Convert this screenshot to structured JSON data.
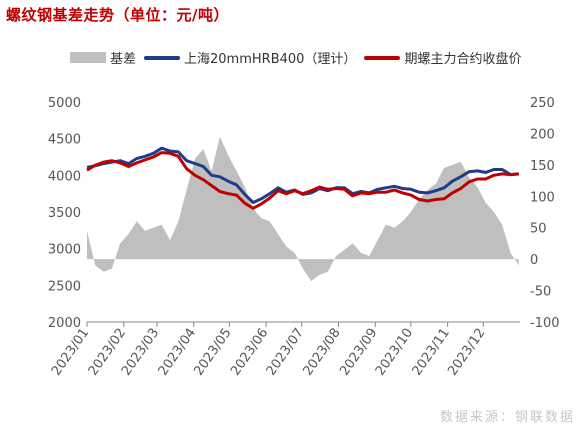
{
  "title": "螺纹钢基差走势（单位：元/吨）",
  "source": "数据来源：钢联数据",
  "colors": {
    "basis": "#bfbfbf",
    "spot": "#1f3c88",
    "futures": "#c00000"
  },
  "chart_data": {
    "type": "line",
    "xlabel": "",
    "ylabel": "",
    "y_left_lim": [
      2000,
      5000
    ],
    "y_left_ticks": [
      2000,
      2500,
      3000,
      3500,
      4000,
      4500,
      5000
    ],
    "y_right_lim": [
      -100,
      250
    ],
    "y_right_ticks": [
      -100,
      -50,
      0,
      50,
      100,
      150,
      200,
      250
    ],
    "x_ticks": [
      "2023/01",
      "2023/02",
      "2023/03",
      "2023/04",
      "2023/05",
      "2023/06",
      "2023/07",
      "2023/08",
      "2023/09",
      "2023/10",
      "2023/11",
      "2023/12"
    ],
    "legend_position": "top",
    "series": [
      {
        "name": "基差",
        "type": "area",
        "axis": "right",
        "x": [
          "2023/01/01",
          "2023/01/08",
          "2023/01/15",
          "2023/01/22",
          "2023/01/29",
          "2023/02/05",
          "2023/02/12",
          "2023/02/19",
          "2023/02/26",
          "2023/03/05",
          "2023/03/12",
          "2023/03/19",
          "2023/03/26",
          "2023/04/02",
          "2023/04/09",
          "2023/04/16",
          "2023/04/23",
          "2023/04/30",
          "2023/05/07",
          "2023/05/14",
          "2023/05/21",
          "2023/05/28",
          "2023/06/04",
          "2023/06/11",
          "2023/06/18",
          "2023/06/25",
          "2023/07/02",
          "2023/07/09",
          "2023/07/16",
          "2023/07/23",
          "2023/07/30",
          "2023/08/06",
          "2023/08/13",
          "2023/08/20",
          "2023/08/27",
          "2023/09/03",
          "2023/09/10",
          "2023/09/17",
          "2023/09/24",
          "2023/10/01",
          "2023/10/08",
          "2023/10/15",
          "2023/10/22",
          "2023/10/29",
          "2023/11/05",
          "2023/11/12",
          "2023/11/19",
          "2023/11/26",
          "2023/12/03",
          "2023/12/10",
          "2023/12/17",
          "2023/12/24",
          "2023/12/31"
        ],
        "values": [
          45,
          -10,
          -20,
          -15,
          25,
          40,
          60,
          45,
          50,
          55,
          30,
          60,
          110,
          160,
          175,
          140,
          195,
          165,
          140,
          115,
          80,
          65,
          60,
          40,
          20,
          10,
          -15,
          -35,
          -25,
          -20,
          5,
          15,
          25,
          10,
          5,
          30,
          55,
          50,
          60,
          75,
          95,
          110,
          120,
          145,
          150,
          155,
          130,
          115,
          90,
          75,
          55,
          10,
          -10
        ]
      },
      {
        "name": "上海20mmHRB400（理计）",
        "type": "line",
        "axis": "left",
        "x": [
          "2023/01/01",
          "2023/01/08",
          "2023/01/15",
          "2023/01/22",
          "2023/01/29",
          "2023/02/05",
          "2023/02/12",
          "2023/02/19",
          "2023/02/26",
          "2023/03/05",
          "2023/03/12",
          "2023/03/19",
          "2023/03/26",
          "2023/04/02",
          "2023/04/09",
          "2023/04/16",
          "2023/04/23",
          "2023/04/30",
          "2023/05/07",
          "2023/05/14",
          "2023/05/21",
          "2023/05/28",
          "2023/06/04",
          "2023/06/11",
          "2023/06/18",
          "2023/06/25",
          "2023/07/02",
          "2023/07/09",
          "2023/07/16",
          "2023/07/23",
          "2023/07/30",
          "2023/08/06",
          "2023/08/13",
          "2023/08/20",
          "2023/08/27",
          "2023/09/03",
          "2023/09/10",
          "2023/09/17",
          "2023/09/24",
          "2023/10/01",
          "2023/10/08",
          "2023/10/15",
          "2023/10/22",
          "2023/10/29",
          "2023/11/05",
          "2023/11/12",
          "2023/11/19",
          "2023/11/26",
          "2023/12/03",
          "2023/12/10",
          "2023/12/17",
          "2023/12/24",
          "2023/12/31"
        ],
        "values": [
          4110,
          4130,
          4160,
          4180,
          4200,
          4160,
          4230,
          4260,
          4300,
          4370,
          4330,
          4320,
          4200,
          4160,
          4120,
          4000,
          3980,
          3920,
          3870,
          3740,
          3630,
          3680,
          3750,
          3830,
          3770,
          3800,
          3740,
          3760,
          3820,
          3790,
          3830,
          3830,
          3750,
          3780,
          3760,
          3810,
          3830,
          3850,
          3820,
          3810,
          3770,
          3760,
          3790,
          3830,
          3920,
          3980,
          4050,
          4060,
          4040,
          4080,
          4080,
          4010,
          4020
        ]
      },
      {
        "name": "期螺主力合约收盘价",
        "type": "line",
        "axis": "left",
        "x": [
          "2023/01/01",
          "2023/01/08",
          "2023/01/15",
          "2023/01/22",
          "2023/01/29",
          "2023/02/05",
          "2023/02/12",
          "2023/02/19",
          "2023/02/26",
          "2023/03/05",
          "2023/03/12",
          "2023/03/19",
          "2023/03/26",
          "2023/04/02",
          "2023/04/09",
          "2023/04/16",
          "2023/04/23",
          "2023/04/30",
          "2023/05/07",
          "2023/05/14",
          "2023/05/21",
          "2023/05/28",
          "2023/06/04",
          "2023/06/11",
          "2023/06/18",
          "2023/06/25",
          "2023/07/02",
          "2023/07/09",
          "2023/07/16",
          "2023/07/23",
          "2023/07/30",
          "2023/08/06",
          "2023/08/13",
          "2023/08/20",
          "2023/08/27",
          "2023/09/03",
          "2023/09/10",
          "2023/09/17",
          "2023/09/24",
          "2023/10/01",
          "2023/10/08",
          "2023/10/15",
          "2023/10/22",
          "2023/10/29",
          "2023/11/05",
          "2023/11/12",
          "2023/11/19",
          "2023/11/26",
          "2023/12/03",
          "2023/12/10",
          "2023/12/17",
          "2023/12/24",
          "2023/12/31"
        ],
        "values": [
          4070,
          4140,
          4180,
          4200,
          4170,
          4120,
          4170,
          4210,
          4250,
          4310,
          4300,
          4260,
          4090,
          4000,
          3940,
          3860,
          3780,
          3750,
          3730,
          3620,
          3550,
          3610,
          3690,
          3790,
          3750,
          3790,
          3750,
          3790,
          3840,
          3810,
          3820,
          3810,
          3720,
          3760,
          3750,
          3770,
          3770,
          3800,
          3760,
          3730,
          3670,
          3650,
          3670,
          3680,
          3760,
          3820,
          3910,
          3950,
          3950,
          4000,
          4020,
          4010,
          4020
        ]
      }
    ]
  }
}
